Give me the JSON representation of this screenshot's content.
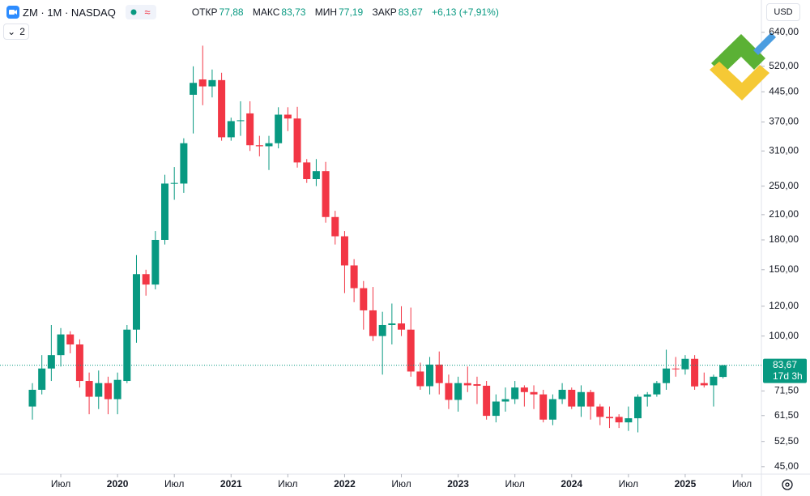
{
  "header": {
    "symbol": "ZM · 1M · NASDAQ",
    "open_label": "ОТКР",
    "open": "77,88",
    "high_label": "МАКС",
    "high": "83,73",
    "low_label": "МИН",
    "low": "77,19",
    "close_label": "ЗАКР",
    "close": "83,67",
    "change": "+6,13 (+7,91%)",
    "currency": "USD",
    "indicators": "2"
  },
  "chart_data": {
    "type": "candlestick",
    "x": [
      "2019-04",
      "2019-05",
      "2019-06",
      "2019-07",
      "2019-08",
      "2019-09",
      "2019-10",
      "2019-11",
      "2019-12",
      "2020-01",
      "2020-02",
      "2020-03",
      "2020-04",
      "2020-05",
      "2020-06",
      "2020-07",
      "2020-08",
      "2020-09",
      "2020-10",
      "2020-11",
      "2020-12",
      "2021-01",
      "2021-02",
      "2021-03",
      "2021-04",
      "2021-05",
      "2021-06",
      "2021-07",
      "2021-08",
      "2021-09",
      "2021-10",
      "2021-11",
      "2021-12",
      "2022-01",
      "2022-02",
      "2022-03",
      "2022-04",
      "2022-05",
      "2022-06",
      "2022-07",
      "2022-08",
      "2022-09",
      "2022-10",
      "2022-11",
      "2022-12",
      "2023-01",
      "2023-02",
      "2023-03",
      "2023-04",
      "2023-05",
      "2023-06",
      "2023-07",
      "2023-08",
      "2023-09",
      "2023-10",
      "2023-11",
      "2023-12",
      "2024-01",
      "2024-02",
      "2024-03",
      "2024-04",
      "2024-05",
      "2024-06",
      "2024-07",
      "2024-08",
      "2024-09",
      "2024-10",
      "2024-11",
      "2024-12",
      "2025-01",
      "2025-02",
      "2025-03",
      "2025-04",
      "2025-05"
    ],
    "open": [
      65,
      72,
      82,
      89,
      101,
      95,
      76,
      69,
      75,
      68,
      76,
      104,
      146,
      137,
      180,
      254,
      254,
      437,
      480,
      460,
      478,
      337,
      372,
      390,
      321,
      319,
      325,
      387,
      378,
      289,
      261,
      274,
      207,
      184,
      154,
      134,
      117,
      100,
      107,
      108,
      104,
      80.5,
      73.6,
      84,
      75,
      67.7,
      75,
      74.5,
      73.8,
      61.4,
      67,
      68,
      73,
      71,
      70,
      60,
      68,
      72,
      65,
      71,
      65,
      61,
      61,
      59,
      60.5,
      69,
      70,
      75,
      82,
      81.6,
      87,
      75,
      74,
      77.88
    ],
    "high": [
      75,
      89,
      107,
      105,
      103,
      98,
      80,
      81,
      78,
      80,
      107,
      164,
      150,
      190,
      268,
      281,
      335,
      520,
      590,
      510,
      500,
      380,
      420,
      420,
      340,
      340,
      405,
      405,
      406,
      295,
      295,
      290,
      215,
      190,
      160,
      140,
      135,
      116,
      122,
      120,
      119,
      85,
      88,
      91,
      79,
      78,
      83,
      78,
      76,
      70,
      73,
      76,
      74,
      74,
      72,
      70,
      75,
      73,
      74,
      72,
      66,
      65,
      62,
      65,
      70,
      71,
      76,
      92,
      88,
      89,
      89,
      80,
      79,
      83.73
    ],
    "low": [
      60,
      70,
      76,
      83,
      90,
      73,
      62,
      64,
      62,
      62,
      75,
      96,
      128,
      133,
      175,
      230,
      240,
      345,
      410,
      430,
      330,
      330,
      340,
      310,
      300,
      276,
      315,
      350,
      280,
      255,
      250,
      200,
      175,
      130,
      123,
      104,
      97,
      79,
      95,
      100,
      78,
      72,
      70,
      70,
      64,
      63,
      71,
      66,
      60,
      59,
      63,
      66,
      65,
      64,
      59,
      58,
      66,
      64,
      61,
      60,
      58,
      57,
      57,
      56,
      55.5,
      65,
      69,
      72,
      78,
      79,
      72,
      73,
      65,
      77.19
    ],
    "close": [
      72,
      82,
      89,
      101,
      95,
      76,
      69,
      75,
      68,
      76.5,
      104,
      146,
      137,
      180,
      254,
      255,
      325,
      470,
      460,
      478,
      337,
      372,
      374,
      321,
      319,
      325,
      387,
      378,
      289,
      261,
      274,
      207,
      184,
      154,
      134,
      117,
      100,
      107,
      108,
      104,
      80.5,
      73.6,
      84,
      75,
      67.7,
      75,
      74,
      73.8,
      61.4,
      67,
      68,
      73,
      71,
      70,
      60,
      68,
      72,
      65,
      71,
      65,
      61,
      60.5,
      59,
      60.5,
      69,
      70,
      75,
      82,
      81.6,
      87,
      73.5,
      74,
      78,
      83.67
    ],
    "colors": {
      "up": "#089981",
      "down": "#f23645"
    },
    "log_scale": true,
    "grid": false,
    "ylim": [
      43,
      780
    ],
    "yticks": [
      {
        "value": 45,
        "label": "45,00"
      },
      {
        "value": 52.5,
        "label": "52,50"
      },
      {
        "value": 61.5,
        "label": "61,50"
      },
      {
        "value": 71.5,
        "label": "71,50"
      },
      {
        "value": 100,
        "label": "100,00"
      },
      {
        "value": 120,
        "label": "120,00"
      },
      {
        "value": 150,
        "label": "150,00"
      },
      {
        "value": 180,
        "label": "180,00"
      },
      {
        "value": 210,
        "label": "210,00"
      },
      {
        "value": 250,
        "label": "250,00"
      },
      {
        "value": 310,
        "label": "310,00"
      },
      {
        "value": 370,
        "label": "370,00"
      },
      {
        "value": 445,
        "label": "445,00"
      },
      {
        "value": 520,
        "label": "520,00"
      },
      {
        "value": 640,
        "label": "640,00"
      }
    ],
    "xticks": [
      {
        "value": "2019-07",
        "label": "Июл"
      },
      {
        "value": "2020-01",
        "label": "2020"
      },
      {
        "value": "2020-07",
        "label": "Июл"
      },
      {
        "value": "2021-01",
        "label": "2021"
      },
      {
        "value": "2021-07",
        "label": "Июл"
      },
      {
        "value": "2022-01",
        "label": "2022"
      },
      {
        "value": "2022-07",
        "label": "Июл"
      },
      {
        "value": "2023-01",
        "label": "2023"
      },
      {
        "value": "2023-07",
        "label": "Июл"
      },
      {
        "value": "2024-01",
        "label": "2024"
      },
      {
        "value": "2024-07",
        "label": "Июл"
      },
      {
        "value": "2025-01",
        "label": "2025"
      },
      {
        "value": "2025-07",
        "label": "Июл"
      }
    ],
    "last_price_label": "83,67",
    "countdown": "17d 3h"
  }
}
